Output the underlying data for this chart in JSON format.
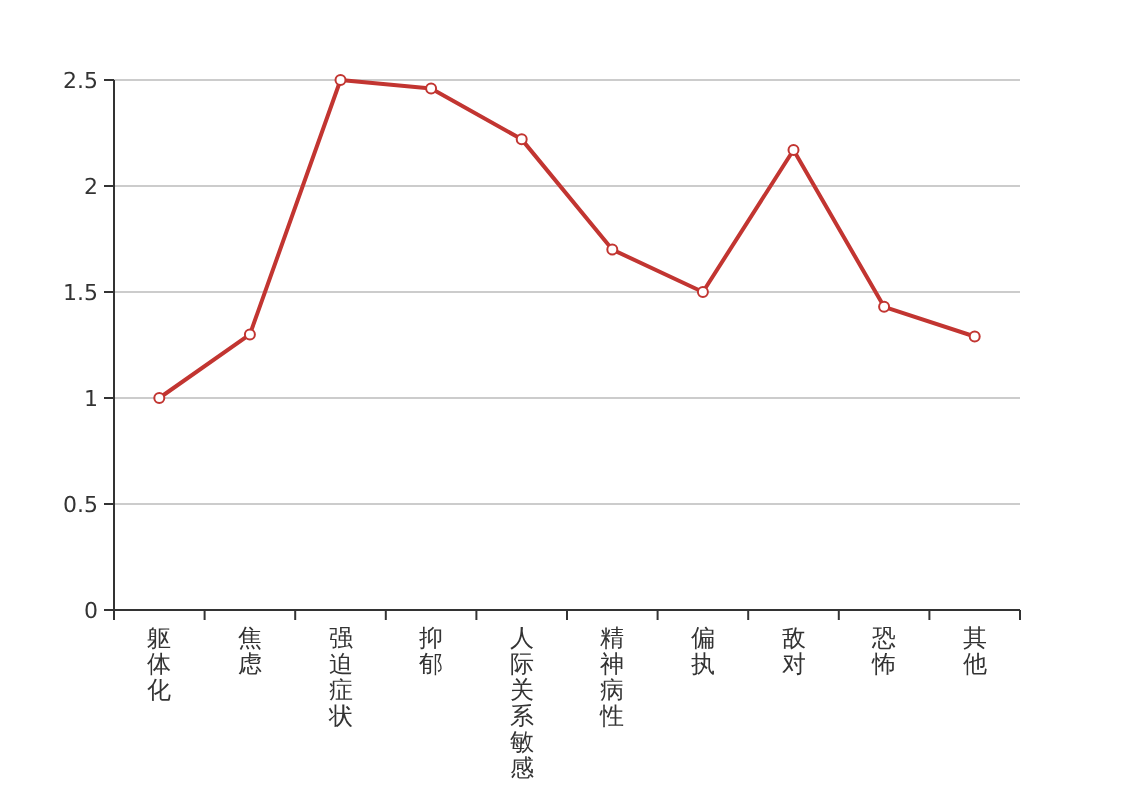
{
  "chart_data": {
    "type": "line",
    "categories": [
      "躯体化",
      "焦虑",
      "强迫症状",
      "抑郁",
      "人际关系敏感",
      "精神病性",
      "偏执",
      "敌对",
      "恐怖",
      "其他"
    ],
    "series": [
      {
        "color": "#c23531",
        "values": [
          1.0,
          1.3,
          2.5,
          2.46,
          2.22,
          1.7,
          1.5,
          2.17,
          1.43,
          1.29
        ]
      }
    ],
    "ylim": [
      0,
      2.5
    ],
    "yticks": [
      0,
      0.5,
      1,
      1.5,
      2,
      2.5
    ],
    "grid": "y",
    "marker": "circle"
  }
}
